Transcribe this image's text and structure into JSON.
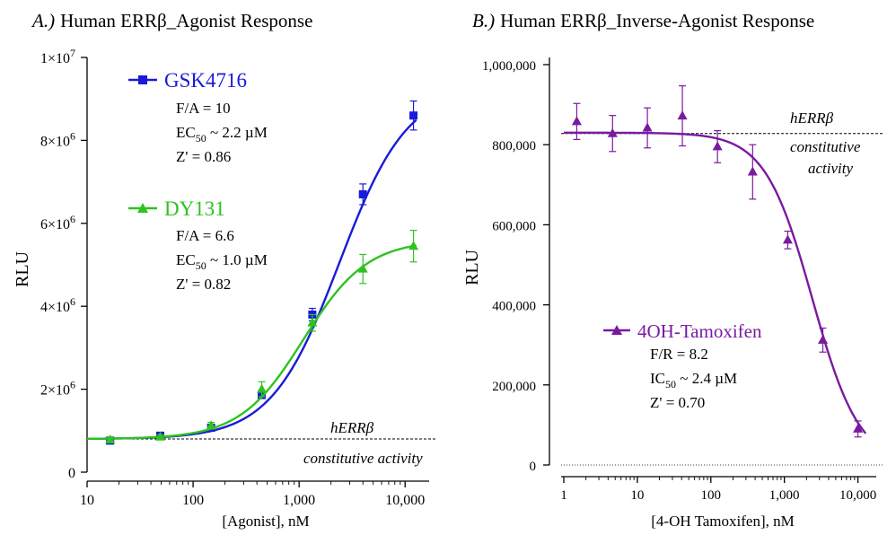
{
  "colors": {
    "gsk": "#1a1ad8",
    "dy": "#2ec21f",
    "tam": "#7a1aa0",
    "axis": "#000000",
    "baseline": "#000000"
  },
  "chart_data": [
    {
      "type": "scatter",
      "title_prefix": "A.)",
      "title": "Human ERRβ_Agonist Response",
      "xlabel": "[Agonist], nM",
      "ylabel": "RLU",
      "x_scale": "log",
      "xlim": [
        10,
        15000
      ],
      "ylim": [
        0,
        10000000
      ],
      "x_tick_values": [
        10,
        100,
        1000,
        10000
      ],
      "x_tick_labels": [
        "10",
        "100",
        "1,000",
        "10,000"
      ],
      "y_tick_values": [
        0,
        2000000,
        4000000,
        6000000,
        8000000,
        10000000
      ],
      "y_tick_labels": [
        {
          "mant": "0",
          "exp": ""
        },
        {
          "mant": "2×10",
          "exp": "6"
        },
        {
          "mant": "4×10",
          "exp": "6"
        },
        {
          "mant": "6×10",
          "exp": "6"
        },
        {
          "mant": "8×10",
          "exp": "6"
        },
        {
          "mant": "1×10",
          "exp": "7"
        }
      ],
      "baseline": {
        "y": 800000,
        "label_line1": "hERRβ",
        "label_line2": "constitutive activity"
      },
      "series": [
        {
          "name": "GSK4716",
          "color_key": "gsk",
          "marker": "square",
          "x": [
            16.5,
            49,
            148,
            444,
            1333,
            4000,
            12000
          ],
          "y": [
            760000,
            880000,
            1070000,
            1860000,
            3800000,
            6700000,
            8600000
          ],
          "err": [
            40000,
            40000,
            60000,
            80000,
            150000,
            250000,
            350000
          ],
          "fit": {
            "bottom": 800000,
            "top": 9300000,
            "ec50": 2400,
            "hill": 1.35
          },
          "stats": [
            {
              "key": "F/A = ",
              "sub": "",
              "value": "10"
            },
            {
              "key": "EC",
              "sub": "50",
              "value": " ~ 2.2 µM"
            },
            {
              "key": "Z' = ",
              "sub": "",
              "value": "0.86"
            }
          ]
        },
        {
          "name": "DY131",
          "color_key": "dy",
          "marker": "triangle",
          "x": [
            16.5,
            49,
            148,
            444,
            1333,
            4000,
            12000
          ],
          "y": [
            780000,
            850000,
            1120000,
            2000000,
            3600000,
            4900000,
            5450000
          ],
          "err": [
            50000,
            50000,
            80000,
            180000,
            200000,
            350000,
            380000
          ],
          "fit": {
            "bottom": 800000,
            "top": 5600000,
            "ec50": 1100,
            "hill": 1.45
          },
          "stats": [
            {
              "key": "F/A = ",
              "sub": "",
              "value": "6.6"
            },
            {
              "key": "EC",
              "sub": "50",
              "value": " ~ 1.0 µM"
            },
            {
              "key": "Z' = ",
              "sub": "",
              "value": "0.82"
            }
          ]
        }
      ]
    },
    {
      "type": "scatter",
      "title_prefix": "B.)",
      "title": "Human ERRβ_Inverse-Agonist Response",
      "xlabel": "[4-OH Tamoxifen], nM",
      "ylabel": "RLU",
      "x_scale": "log",
      "xlim": [
        1,
        15000
      ],
      "ylim": [
        0,
        1000000
      ],
      "x_tick_values": [
        1,
        10,
        100,
        1000,
        10000
      ],
      "x_tick_labels": [
        "1",
        "10",
        "100",
        "1,000",
        "10,000"
      ],
      "y_tick_values": [
        0,
        200000,
        400000,
        600000,
        800000,
        1000000
      ],
      "y_tick_labels": [
        "0",
        "200,000",
        "400,000",
        "600,000",
        "800,000",
        "1,000,000"
      ],
      "baseline": {
        "y": 828000,
        "label_line1": "hERRβ",
        "label_line2": "constitutive",
        "label_line3": "activity"
      },
      "zero_line": true,
      "series": [
        {
          "name": "4OH-Tamoxifen",
          "color_key": "tam",
          "marker": "triangle",
          "x": [
            1.5,
            4.6,
            13.7,
            41,
            123,
            370,
            1111,
            3333,
            10000
          ],
          "y": [
            858000,
            828000,
            842000,
            872000,
            795000,
            732000,
            562000,
            312000,
            90000
          ],
          "err": [
            45000,
            45000,
            50000,
            75000,
            40000,
            68000,
            22000,
            30000,
            20000
          ],
          "fit": {
            "bottom": 0,
            "top": 830000,
            "ic50": 2400,
            "hill": 1.35
          },
          "stats": [
            {
              "key": "F/R = ",
              "sub": "",
              "value": "8.2"
            },
            {
              "key": "IC",
              "sub": "50",
              "value": " ~ 2.4 µM"
            },
            {
              "key": "Z' = ",
              "sub": "",
              "value": "0.70"
            }
          ]
        }
      ]
    }
  ]
}
